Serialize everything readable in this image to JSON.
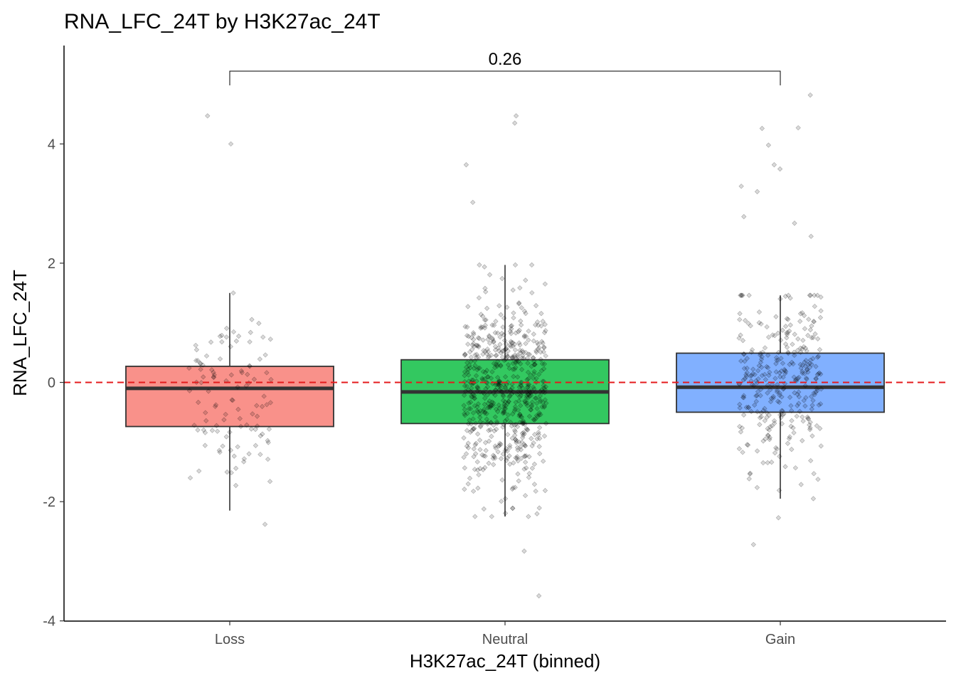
{
  "chart_data": {
    "type": "box",
    "title": "RNA_LFC_24T by H3K27ac_24T",
    "xlabel": "H3K27ac_24T (binned)",
    "ylabel": "RNA_LFC_24T",
    "ylim": [
      -4,
      5.6
    ],
    "yticks": [
      -4,
      -2,
      0,
      2,
      4
    ],
    "categories": [
      "Loss",
      "Neutral",
      "Gain"
    ],
    "boxes": [
      {
        "category": "Loss",
        "color": "#F8766D",
        "whisker_low": -2.15,
        "q1": -0.74,
        "median": -0.1,
        "q3": 0.27,
        "whisker_high": 1.5
      },
      {
        "category": "Neutral",
        "color": "#00BA38",
        "whisker_low": -2.25,
        "q1": -0.69,
        "median": -0.16,
        "q3": 0.38,
        "whisker_high": 1.97
      },
      {
        "category": "Gain",
        "color": "#619CFF",
        "whisker_low": -1.95,
        "q1": -0.5,
        "median": -0.08,
        "q3": 0.49,
        "whisker_high": 1.46
      }
    ],
    "outliers": [
      {
        "category": "Loss",
        "values": [
          4.47,
          4.0,
          -2.38
        ]
      },
      {
        "category": "Neutral",
        "values": [
          4.47,
          4.35,
          3.65,
          3.02,
          -2.83,
          -3.58
        ]
      },
      {
        "category": "Gain",
        "values": [
          4.82,
          4.27,
          4.26,
          3.98,
          3.65,
          3.58,
          3.29,
          3.2,
          2.78,
          2.67,
          2.45,
          -2.27,
          -2.72
        ]
      }
    ],
    "jitter_counts": [
      110,
      650,
      320
    ],
    "reference_line": {
      "y": 0,
      "color": "#E41A1C",
      "style": "dashed"
    },
    "comparison": {
      "from": "Loss",
      "to": "Gain",
      "label": "0.26"
    },
    "grid": false,
    "legend": "none"
  }
}
